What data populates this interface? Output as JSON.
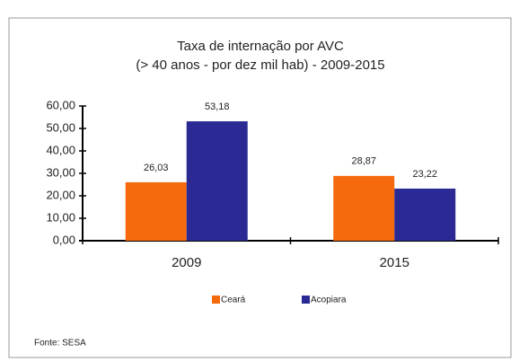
{
  "chart_data": {
    "type": "bar",
    "title": "Taxa de internação por AVC",
    "subtitle": "(> 40 anos - por dez mil hab) - 2009-2015",
    "categories": [
      "2009",
      "2015"
    ],
    "series": [
      {
        "name": "Ceará",
        "color": "#f56a0c",
        "values": [
          26.03,
          28.87
        ],
        "value_labels": [
          "26,03",
          "28,87"
        ]
      },
      {
        "name": "Acopiara",
        "color": "#2b2a94",
        "values": [
          53.18,
          23.22
        ],
        "value_labels": [
          "53,18",
          "23,22"
        ]
      }
    ],
    "ylim": [
      0,
      60
    ],
    "yticks": [
      {
        "value": 0,
        "label": "0,00"
      },
      {
        "value": 10,
        "label": "10,00"
      },
      {
        "value": 20,
        "label": "20,00"
      },
      {
        "value": 30,
        "label": "30,00"
      },
      {
        "value": 40,
        "label": "40,00"
      },
      {
        "value": 50,
        "label": "50,00"
      },
      {
        "value": 60,
        "label": "60,00"
      }
    ],
    "legend": "bottom",
    "source": "Fonte: SESA"
  }
}
